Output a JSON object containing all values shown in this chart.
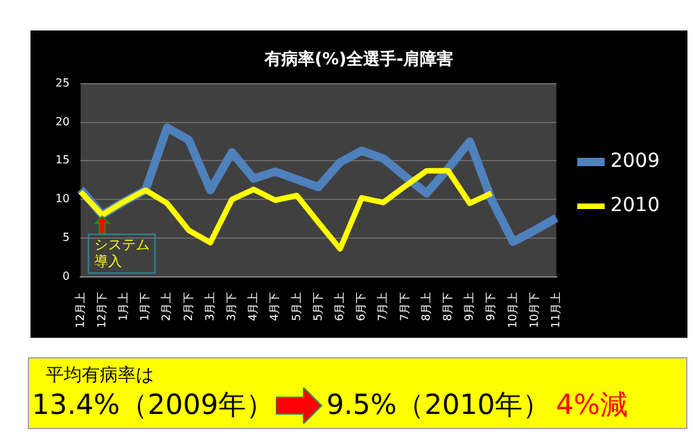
{
  "chart_data": {
    "type": "line",
    "title": "有病率(%)全選手-肩障害",
    "categories": [
      "12月上",
      "12月下",
      "1月上",
      "1月下",
      "2月上",
      "2月下",
      "3月上",
      "3月下",
      "4月上",
      "4月下",
      "5月上",
      "5月下",
      "6月上",
      "6月下",
      "7月上",
      "7月下",
      "8月上",
      "8月下",
      "9月上",
      "9月下",
      "10月上",
      "10月下",
      "11月上"
    ],
    "series": [
      {
        "name": "2009",
        "color": "#4f81bd",
        "values": [
          11.3,
          8,
          9.7,
          11.2,
          19.3,
          17.7,
          11.2,
          16.1,
          12.7,
          13.6,
          12.6,
          11.6,
          14.8,
          16.3,
          15.3,
          13,
          10.8,
          14,
          17.5,
          10,
          4.5,
          6,
          7.6
        ]
      },
      {
        "name": "2010",
        "color": "#ffff00",
        "values": [
          11,
          8,
          9.7,
          11.2,
          9.5,
          6,
          4.4,
          10,
          11.3,
          9.9,
          10.5,
          7,
          3.6,
          10.2,
          9.6,
          11.7,
          13.7,
          13.7,
          9.5,
          10.8,
          null,
          null,
          null
        ]
      }
    ],
    "ylim": [
      0,
      25
    ],
    "yticks": [
      0,
      5,
      10,
      15,
      20,
      25
    ],
    "grid": "y",
    "legend": "right",
    "marker": "none",
    "line_style": "solid",
    "annotations": [
      {
        "text": "システム導入",
        "x": "12月下",
        "y": 8
      },
      "平均有病率は",
      "13.4%（2009年）",
      "9.5%（2010年）",
      "4%減"
    ]
  }
}
